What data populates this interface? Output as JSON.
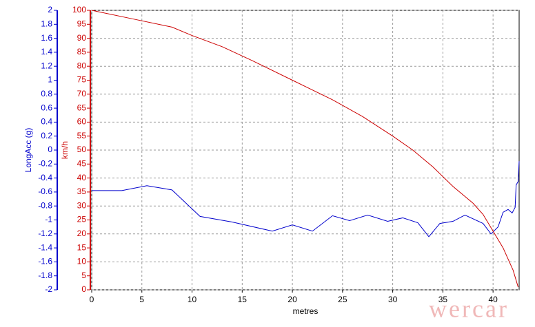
{
  "chart_data": {
    "type": "line",
    "xlabel": "metres",
    "ylabel": "LongAcc (g)",
    "y2label": "km/h",
    "watermark": "wercar",
    "xlim": [
      0,
      42.6
    ],
    "xticks": [
      0,
      5,
      10,
      15,
      20,
      25,
      30,
      35,
      40
    ],
    "ylim": [
      -2,
      2
    ],
    "yticks": [
      -2,
      -1.8,
      -1.6,
      -1.4,
      -1.2,
      -1,
      -0.8,
      -0.6,
      -0.4,
      -0.2,
      0,
      0.2,
      0.4,
      0.6,
      0.8,
      1,
      1.2,
      1.4,
      1.6,
      1.8,
      2
    ],
    "y2lim": [
      0,
      100
    ],
    "y2ticks": [
      0,
      5,
      10,
      15,
      20,
      25,
      30,
      35,
      40,
      45,
      50,
      55,
      60,
      65,
      70,
      75,
      80,
      85,
      90,
      95,
      100
    ],
    "grid": true,
    "series": [
      {
        "color": "#0000cc",
        "x": [
          0,
          3,
          5.5,
          8,
          10.8,
          14,
          18,
          20,
          22,
          24,
          25.7,
          27.5,
          29.5,
          31,
          32.5,
          33.6,
          34.7,
          36,
          37.2,
          39,
          39.8,
          40.5,
          41,
          41.5,
          41.9,
          42.2,
          42.3,
          42.5,
          42.6
        ],
        "values": [
          -0.58,
          -0.58,
          -0.51,
          -0.57,
          -0.95,
          -1.03,
          -1.16,
          -1.07,
          -1.16,
          -0.94,
          -1.01,
          -0.93,
          -1.02,
          -0.97,
          -1.04,
          -1.24,
          -1.05,
          -1.02,
          -0.93,
          -1.05,
          -1.2,
          -1.1,
          -0.89,
          -0.85,
          -0.9,
          -0.82,
          -0.5,
          -0.45,
          -0.16
        ]
      },
      {
        "color": "#cc0000",
        "axis": "y2",
        "x": [
          0,
          4,
          8,
          10,
          13,
          16,
          20,
          24,
          27,
          30,
          32,
          34,
          36,
          38,
          39,
          40,
          41,
          42,
          42.5
        ],
        "values": [
          100,
          97,
          94,
          91,
          87,
          82,
          75,
          68,
          62,
          55,
          50,
          44,
          37,
          31,
          27,
          21,
          15,
          7,
          1
        ]
      }
    ]
  }
}
